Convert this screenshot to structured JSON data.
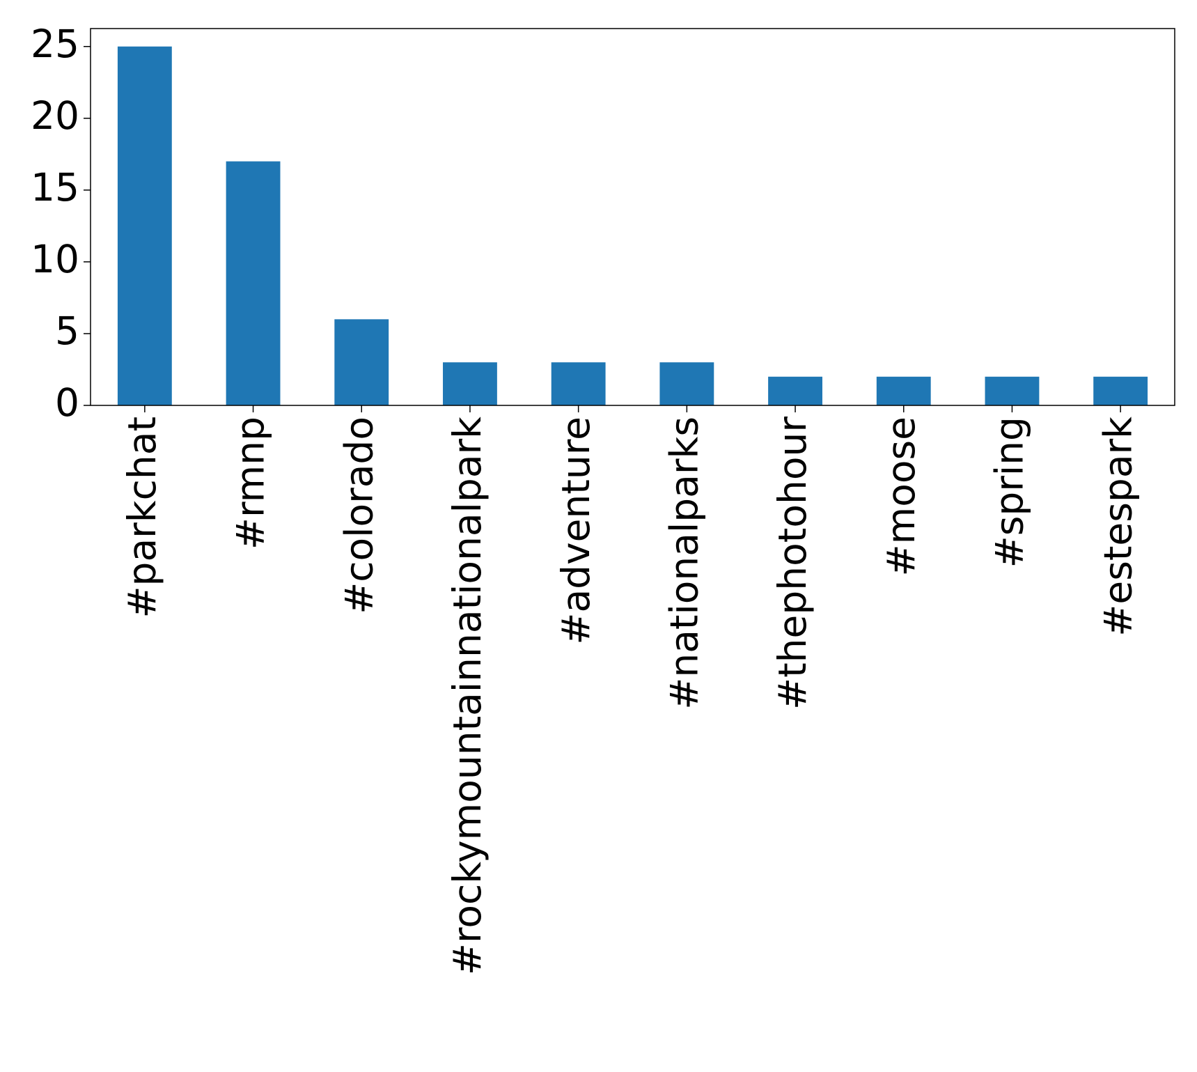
{
  "chart_data": {
    "type": "bar",
    "categories": [
      "#parkchat",
      "#rmnp",
      "#colorado",
      "#rockymountainnationalpark",
      "#adventure",
      "#nationalparks",
      "#thephotohour",
      "#moose",
      "#spring",
      "#estespark"
    ],
    "values": [
      25,
      17,
      6,
      3,
      3,
      3,
      2,
      2,
      2,
      2
    ],
    "color": "#1f77b4",
    "ylim": [
      0,
      26.25
    ],
    "yticks": [
      0,
      5,
      10,
      15,
      20,
      25
    ],
    "grid": false
  }
}
